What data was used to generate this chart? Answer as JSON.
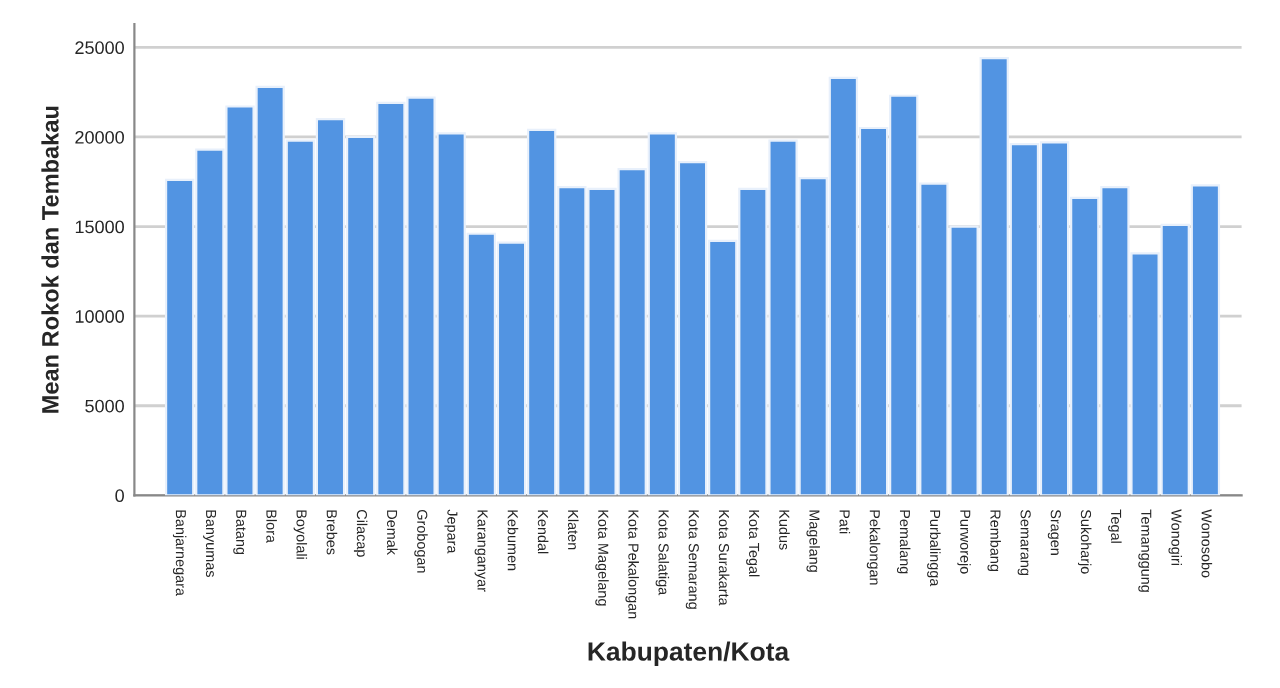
{
  "chart_data": {
    "type": "bar",
    "xlabel": "Kabupaten/Kota",
    "ylabel": "Mean Rokok dan Tembakau",
    "categories": [
      "Banjarnegara",
      "Banyumas",
      "Batang",
      "Blora",
      "Boyolali",
      "Brebes",
      "Cilacap",
      "Demak",
      "Grobogan",
      "Jepara",
      "Karanganyar",
      "Kebumen",
      "Kendal",
      "Klaten",
      "Kota Magelang",
      "Kota Pekalongan",
      "Kota Salatiga",
      "Kota Semarang",
      "Kota Surakarta",
      "Kota Tegal",
      "Kudus",
      "Magelang",
      "Pati",
      "Pekalongan",
      "Pemalang",
      "Purbalingga",
      "Purworejo",
      "Rembang",
      "Semarang",
      "Sragen",
      "Sukoharjo",
      "Tegal",
      "Temanggung",
      "Wonogiri",
      "Wonosobo"
    ],
    "values": [
      17600,
      19300,
      21700,
      22800,
      19800,
      21000,
      20000,
      21900,
      22200,
      20200,
      14600,
      14100,
      20400,
      17200,
      17100,
      18200,
      20200,
      18600,
      14200,
      17100,
      19800,
      17700,
      23300,
      20500,
      22300,
      17400,
      15000,
      24400,
      19600,
      19700,
      16600,
      17200,
      13500,
      15100,
      17300
    ],
    "color": "#5294e2",
    "ylim": [
      0,
      26300
    ],
    "yticks": [
      0,
      5000,
      10000,
      15000,
      20000,
      25000
    ],
    "grid": "y"
  }
}
